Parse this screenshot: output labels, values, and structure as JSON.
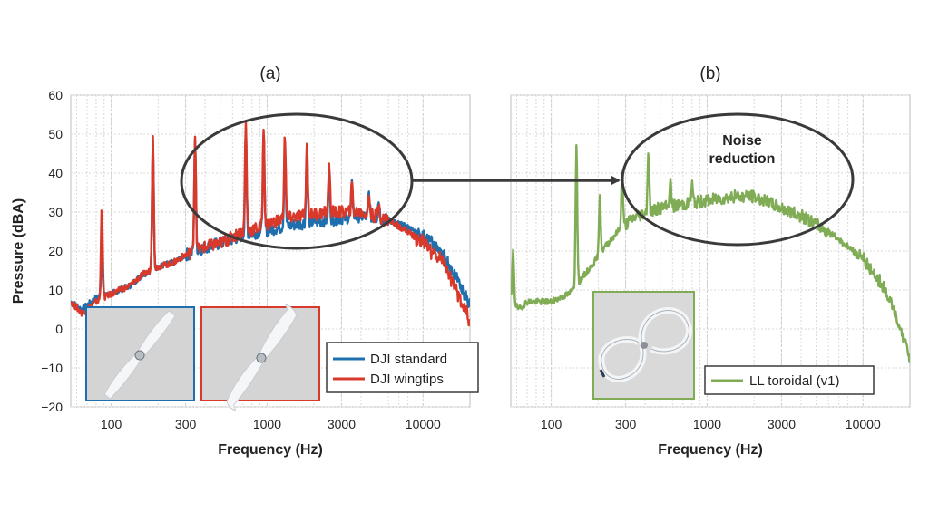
{
  "chart_data": [
    {
      "type": "line",
      "title": "(a)",
      "xlabel": "Frequency (Hz)",
      "ylabel": "Pressure (dBA)",
      "xscale": "log",
      "xlim": [
        55,
        20000
      ],
      "ylim": [
        -20,
        60
      ],
      "x_ticks": [
        100,
        300,
        1000,
        3000,
        10000
      ],
      "x_tick_labels": [
        "100",
        "300",
        "1000",
        "3000",
        "10000"
      ],
      "y_ticks": [
        -20,
        -10,
        0,
        10,
        20,
        30,
        40,
        50,
        60
      ],
      "y_tick_labels": [
        "−20",
        "−10",
        "0",
        "10",
        "20",
        "30",
        "40",
        "50",
        "60"
      ],
      "grid": true,
      "legend_position": "bottom-right",
      "series": [
        {
          "name": "DJI standard",
          "color": "#1f6fae",
          "base": [
            [
              55,
              7
            ],
            [
              65,
              5
            ],
            [
              80,
              8
            ],
            [
              100,
              9
            ],
            [
              130,
              11
            ],
            [
              160,
              14
            ],
            [
              200,
              16
            ],
            [
              250,
              17
            ],
            [
              300,
              19
            ],
            [
              400,
              21
            ],
            [
              500,
              22
            ],
            [
              700,
              24
            ],
            [
              900,
              25
            ],
            [
              1200,
              26
            ],
            [
              1600,
              27
            ],
            [
              2500,
              28
            ],
            [
              4000,
              29
            ],
            [
              6000,
              28
            ],
            [
              8000,
              26
            ],
            [
              10000,
              24
            ],
            [
              13000,
              20
            ],
            [
              16000,
              14
            ],
            [
              20000,
              6
            ]
          ],
          "peaks": [
            [
              87,
              21
            ],
            [
              185,
              48
            ],
            [
              345,
              49
            ],
            [
              730,
              50
            ],
            [
              950,
              49
            ],
            [
              1300,
              47
            ],
            [
              1800,
              45
            ],
            [
              2500,
              41
            ],
            [
              3500,
              37
            ],
            [
              4500,
              35
            ],
            [
              5200,
              33
            ]
          ]
        },
        {
          "name": "DJI wingtips",
          "color": "#d9392b",
          "base": [
            [
              55,
              7
            ],
            [
              65,
              4
            ],
            [
              80,
              7
            ],
            [
              100,
              9
            ],
            [
              130,
              11
            ],
            [
              160,
              14
            ],
            [
              200,
              16
            ],
            [
              250,
              17
            ],
            [
              300,
              19
            ],
            [
              400,
              21
            ],
            [
              500,
              22
            ],
            [
              700,
              25
            ],
            [
              900,
              26
            ],
            [
              1200,
              28
            ],
            [
              1600,
              29
            ],
            [
              2500,
              30
            ],
            [
              4000,
              30
            ],
            [
              6000,
              28
            ],
            [
              8000,
              25
            ],
            [
              10000,
              22
            ],
            [
              13000,
              18
            ],
            [
              16000,
              11
            ],
            [
              20000,
              2
            ]
          ],
          "peaks": [
            [
              87,
              32
            ],
            [
              185,
              50
            ],
            [
              345,
              50
            ],
            [
              730,
              53
            ],
            [
              950,
              52
            ],
            [
              1300,
              50
            ],
            [
              1800,
              47
            ],
            [
              2500,
              42
            ],
            [
              3500,
              37
            ],
            [
              4500,
              34
            ],
            [
              5200,
              32
            ]
          ]
        }
      ]
    },
    {
      "type": "line",
      "title": "(b)",
      "xlabel": "Frequency (Hz)",
      "xscale": "log",
      "xlim": [
        55,
        20000
      ],
      "ylim": [
        -20,
        60
      ],
      "x_ticks": [
        100,
        300,
        1000,
        3000,
        10000
      ],
      "x_tick_labels": [
        "100",
        "300",
        "1000",
        "3000",
        "10000"
      ],
      "grid": true,
      "legend_position": "bottom-right",
      "series": [
        {
          "name": "LL toroidal (v1)",
          "color": "#7fac55",
          "base": [
            [
              55,
              8
            ],
            [
              62,
              5
            ],
            [
              70,
              7
            ],
            [
              100,
              7
            ],
            [
              130,
              9
            ],
            [
              150,
              12
            ],
            [
              180,
              16
            ],
            [
              220,
              21
            ],
            [
              280,
              26
            ],
            [
              350,
              29
            ],
            [
              500,
              31
            ],
            [
              700,
              32
            ],
            [
              1000,
              33
            ],
            [
              1500,
              34
            ],
            [
              2000,
              34
            ],
            [
              3000,
              31
            ],
            [
              4000,
              29
            ],
            [
              5000,
              27
            ],
            [
              7000,
              23
            ],
            [
              10000,
              18
            ],
            [
              14000,
              10
            ],
            [
              20000,
              -7
            ]
          ],
          "peaks": [
            [
              57,
              20
            ],
            [
              145,
              48
            ],
            [
              205,
              35
            ],
            [
              285,
              40
            ],
            [
              420,
              46
            ],
            [
              580,
              38
            ],
            [
              800,
              37
            ]
          ]
        }
      ]
    }
  ],
  "annotation": {
    "text_line1": "Noise",
    "text_line2": "reduction"
  },
  "insets": {
    "a_left": "DJI standard propeller photo",
    "a_right": "DJI wingtips propeller photo",
    "b": "LL toroidal propeller photo"
  }
}
